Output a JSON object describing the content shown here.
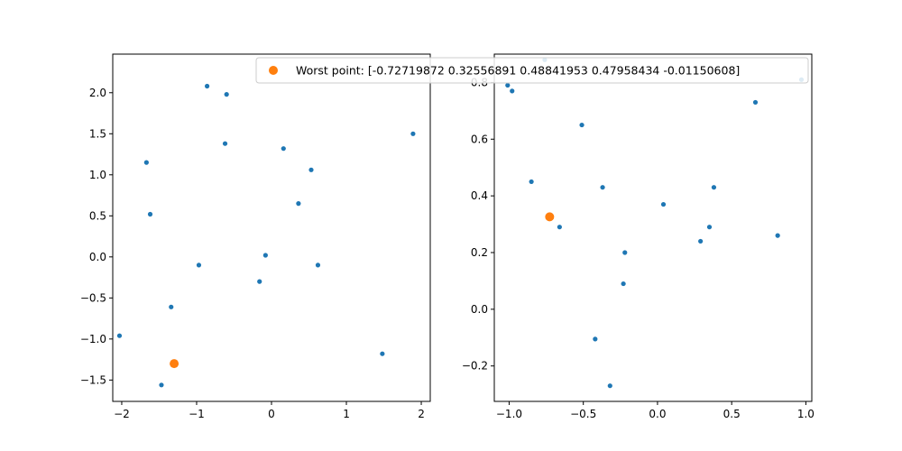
{
  "figure": {
    "background": "#ffffff",
    "axes_color": "#000000"
  },
  "legend": {
    "label": "Worst point: [-0.72719872  0.32556891  0.48841953  0.47958434 -0.01150608]",
    "marker_color": "#ff7f0e",
    "placement": "top-right of left panel, overlapping right panel"
  },
  "chart_data": [
    {
      "type": "scatter",
      "grid": false,
      "xlim": [
        -2.12,
        2.12
      ],
      "ylim": [
        -1.76,
        2.47
      ],
      "xticks": [
        -2,
        -1,
        0,
        1,
        2
      ],
      "xtick_labels": [
        "−2",
        "−1",
        "0",
        "1",
        "2"
      ],
      "yticks": [
        -1.5,
        -1.0,
        -0.5,
        0.0,
        0.5,
        1.0,
        1.5,
        2.0
      ],
      "ytick_labels": [
        "−1.5",
        "−1.0",
        "−0.5",
        "0.0",
        "0.5",
        "1.0",
        "1.5",
        "2.0"
      ],
      "series": [
        {
          "color": "#1f77b4",
          "marker_size": "small",
          "points": [
            [
              -0.86,
              2.08
            ],
            [
              -0.6,
              1.98
            ],
            [
              -0.62,
              1.38
            ],
            [
              0.16,
              1.32
            ],
            [
              1.89,
              1.5
            ],
            [
              -1.67,
              1.15
            ],
            [
              0.53,
              1.06
            ],
            [
              -1.62,
              0.52
            ],
            [
              0.36,
              0.65
            ],
            [
              -0.08,
              0.02
            ],
            [
              -0.97,
              -0.1
            ],
            [
              0.62,
              -0.1
            ],
            [
              -0.16,
              -0.3
            ],
            [
              -1.34,
              -0.61
            ],
            [
              -2.03,
              -0.96
            ],
            [
              1.48,
              -1.18
            ],
            [
              -1.47,
              -1.56
            ]
          ]
        },
        {
          "color": "#ff7f0e",
          "marker_size": "large",
          "points": [
            [
              -1.3,
              -1.3
            ]
          ]
        }
      ]
    },
    {
      "type": "scatter",
      "grid": false,
      "xlim": [
        -1.1,
        1.04
      ],
      "ylim": [
        -0.325,
        0.9
      ],
      "xticks": [
        -1.0,
        -0.5,
        0.0,
        0.5,
        1.0
      ],
      "xtick_labels": [
        "−1.0",
        "−0.5",
        "0.0",
        "0.5",
        "1.0"
      ],
      "yticks": [
        -0.2,
        0.0,
        0.2,
        0.4,
        0.6,
        0.8
      ],
      "ytick_labels": [
        "−0.2",
        "0.0",
        "0.2",
        "0.4",
        "0.6",
        "0.8"
      ],
      "series": [
        {
          "color": "#1f77b4",
          "marker_size": "small",
          "points": [
            [
              -1.01,
              0.79
            ],
            [
              -0.98,
              0.77
            ],
            [
              -0.51,
              0.65
            ],
            [
              -0.85,
              0.45
            ],
            [
              -0.37,
              0.43
            ],
            [
              -0.66,
              0.29
            ],
            [
              0.04,
              0.37
            ],
            [
              -0.22,
              0.2
            ],
            [
              0.66,
              0.73
            ],
            [
              0.97,
              0.81
            ],
            [
              0.38,
              0.43
            ],
            [
              0.35,
              0.29
            ],
            [
              0.29,
              0.24
            ],
            [
              0.81,
              0.26
            ],
            [
              -0.23,
              0.09
            ],
            [
              -0.42,
              -0.105
            ],
            [
              -0.32,
              -0.27
            ],
            [
              -0.76,
              0.88
            ]
          ]
        },
        {
          "color": "#ff7f0e",
          "marker_size": "large",
          "points": [
            [
              -0.727,
              0.326
            ]
          ]
        }
      ]
    }
  ]
}
